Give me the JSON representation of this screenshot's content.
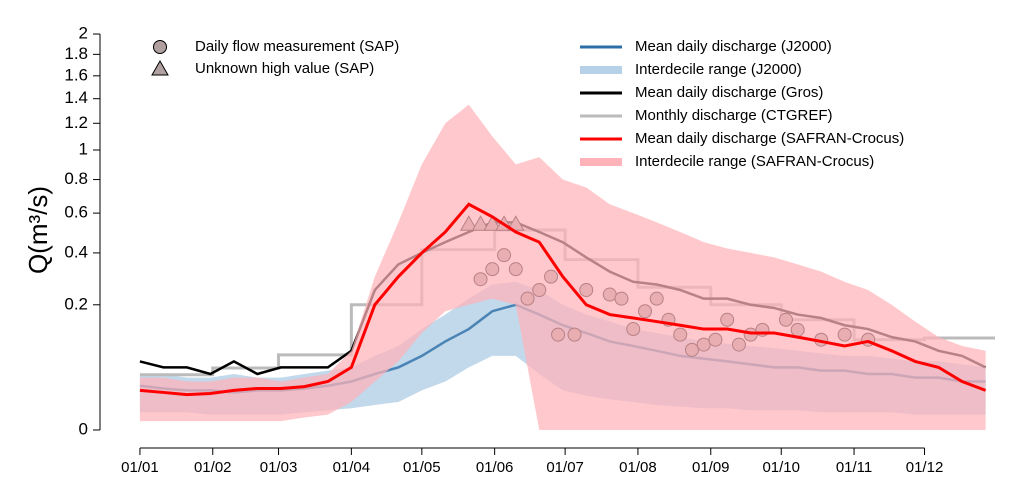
{
  "chart_data": {
    "type": "line",
    "y_label": "Q(m³/s)",
    "scale": "sqrt",
    "ylim": [
      0,
      2.25
    ],
    "yticks": [
      0,
      0.2,
      0.4,
      0.6,
      0.8,
      1,
      1.2,
      1.4,
      1.6,
      1.8,
      2
    ],
    "xlim": [
      -17,
      364
    ],
    "xticks": [
      {
        "value": 0,
        "label": "01/01"
      },
      {
        "value": 31,
        "label": "01/02"
      },
      {
        "value": 59,
        "label": "01/03"
      },
      {
        "value": 90,
        "label": "01/04"
      },
      {
        "value": 120,
        "label": "01/05"
      },
      {
        "value": 151,
        "label": "01/06"
      },
      {
        "value": 181,
        "label": "01/07"
      },
      {
        "value": 212,
        "label": "01/08"
      },
      {
        "value": 243,
        "label": "01/09"
      },
      {
        "value": 273,
        "label": "01/10"
      },
      {
        "value": 304,
        "label": "01/11"
      },
      {
        "value": 334,
        "label": "01/12"
      }
    ],
    "x": [
      0,
      10,
      20,
      30,
      40,
      50,
      60,
      70,
      80,
      90,
      100,
      110,
      120,
      130,
      140,
      150,
      160,
      170,
      180,
      190,
      200,
      210,
      220,
      230,
      240,
      250,
      260,
      270,
      280,
      290,
      300,
      310,
      320,
      330,
      340,
      350,
      360
    ],
    "series": [
      {
        "name": "Daily flow measurement (SAP)",
        "kind": "points",
        "marker": "circle",
        "color": "#b0a0a0",
        "x": [
          145,
          150,
          155,
          160,
          165,
          170,
          175,
          178,
          185,
          190,
          200,
          205,
          210,
          215,
          220,
          225,
          230,
          235,
          240,
          245,
          250,
          255,
          260,
          265,
          275,
          280,
          290,
          300,
          310
        ],
        "values": [
          0.29,
          0.33,
          0.39,
          0.33,
          0.22,
          0.25,
          0.3,
          0.116,
          0.116,
          0.25,
          0.234,
          0.22,
          0.13,
          0.18,
          0.22,
          0.155,
          0.116,
          0.082,
          0.093,
          0.104,
          0.155,
          0.093,
          0.116,
          0.128,
          0.155,
          0.128,
          0.104,
          0.116,
          0.104
        ]
      },
      {
        "name": "Unknown high value (SAP)",
        "kind": "points",
        "marker": "triangle",
        "color": "#b0a0a0",
        "x": [
          140,
          145,
          150,
          155,
          160
        ],
        "values": [
          0.54,
          0.54,
          0.54,
          0.54,
          0.54
        ]
      },
      {
        "name": "Mean daily discharge (J2000)",
        "kind": "line",
        "color": "#2c6fa8",
        "values": [
          0.025,
          0.022,
          0.02,
          0.02,
          0.018,
          0.02,
          0.02,
          0.022,
          0.025,
          0.03,
          0.04,
          0.05,
          0.07,
          0.1,
          0.13,
          0.18,
          0.2,
          0.17,
          0.14,
          0.12,
          0.1,
          0.09,
          0.08,
          0.07,
          0.065,
          0.06,
          0.055,
          0.05,
          0.05,
          0.045,
          0.045,
          0.04,
          0.04,
          0.035,
          0.035,
          0.03,
          0.03
        ]
      },
      {
        "name": "Interdecile range (J2000)",
        "kind": "band",
        "color": "#b7d1e8",
        "lower": [
          0.004,
          0.004,
          0.004,
          0.003,
          0.003,
          0.003,
          0.003,
          0.004,
          0.005,
          0.006,
          0.008,
          0.01,
          0.02,
          0.03,
          0.05,
          0.07,
          0.07,
          0.04,
          0.02,
          0.015,
          0.012,
          0.01,
          0.008,
          0.007,
          0.006,
          0.006,
          0.005,
          0.005,
          0.005,
          0.004,
          0.004,
          0.004,
          0.004,
          0.003,
          0.003,
          0.003,
          0.003
        ],
        "upper": [
          0.04,
          0.04,
          0.035,
          0.035,
          0.04,
          0.035,
          0.035,
          0.04,
          0.045,
          0.05,
          0.07,
          0.09,
          0.13,
          0.17,
          0.22,
          0.27,
          0.28,
          0.25,
          0.2,
          0.17,
          0.15,
          0.13,
          0.12,
          0.11,
          0.1,
          0.095,
          0.09,
          0.085,
          0.08,
          0.075,
          0.07,
          0.07,
          0.065,
          0.06,
          0.06,
          0.055,
          0.05
        ]
      },
      {
        "name": "Mean daily discharge (Gros)",
        "kind": "line",
        "color": "#000000",
        "values": [
          0.06,
          0.05,
          0.05,
          0.04,
          0.06,
          0.04,
          0.05,
          0.05,
          0.05,
          0.08,
          0.25,
          0.35,
          0.4,
          0.45,
          0.5,
          0.55,
          0.55,
          0.5,
          0.45,
          0.38,
          0.32,
          0.28,
          0.27,
          0.25,
          0.22,
          0.22,
          0.2,
          0.19,
          0.17,
          0.16,
          0.14,
          0.13,
          0.11,
          0.1,
          0.08,
          0.07,
          0.05
        ]
      },
      {
        "name": "Monthly discharge (CTGREF)",
        "kind": "step",
        "color": "#bbbbbb",
        "x": [
          0,
          31,
          59,
          90,
          120,
          151,
          181,
          212,
          243,
          273,
          304,
          334
        ],
        "values": [
          0.039,
          0.049,
          0.072,
          0.2,
          0.415,
          0.51,
          0.37,
          0.26,
          0.2,
          0.155,
          0.104,
          0.108
        ]
      },
      {
        "name": "Mean daily discharge (SAFRAN-Crocus)",
        "kind": "line",
        "color": "#ff0000",
        "values": [
          0.02,
          0.018,
          0.016,
          0.017,
          0.02,
          0.022,
          0.022,
          0.024,
          0.03,
          0.05,
          0.2,
          0.3,
          0.4,
          0.5,
          0.65,
          0.58,
          0.5,
          0.45,
          0.3,
          0.2,
          0.17,
          0.16,
          0.15,
          0.14,
          0.13,
          0.13,
          0.12,
          0.12,
          0.11,
          0.1,
          0.09,
          0.1,
          0.08,
          0.06,
          0.05,
          0.03,
          0.02
        ]
      },
      {
        "name": "Interdecile range (SAFRAN-Crocus)",
        "kind": "band",
        "color": "#ffb3b8",
        "lower": [
          0.001,
          0.001,
          0.001,
          0.001,
          0.001,
          0.001,
          0.001,
          0.002,
          0.003,
          0.01,
          0.03,
          0.06,
          0.12,
          0.18,
          0.2,
          0.22,
          0.2,
          0,
          0,
          0,
          0,
          0,
          0,
          0,
          0,
          0,
          0,
          0,
          0,
          0,
          0,
          0,
          0,
          0,
          0,
          0,
          0
        ],
        "upper": [
          0.035,
          0.035,
          0.03,
          0.03,
          0.035,
          0.035,
          0.03,
          0.035,
          0.04,
          0.08,
          0.3,
          0.55,
          0.9,
          1.2,
          1.35,
          1.1,
          0.9,
          0.95,
          0.8,
          0.75,
          0.65,
          0.6,
          0.55,
          0.5,
          0.45,
          0.42,
          0.4,
          0.38,
          0.35,
          0.32,
          0.28,
          0.25,
          0.2,
          0.15,
          0.11,
          0.09,
          0.08
        ]
      }
    ]
  }
}
